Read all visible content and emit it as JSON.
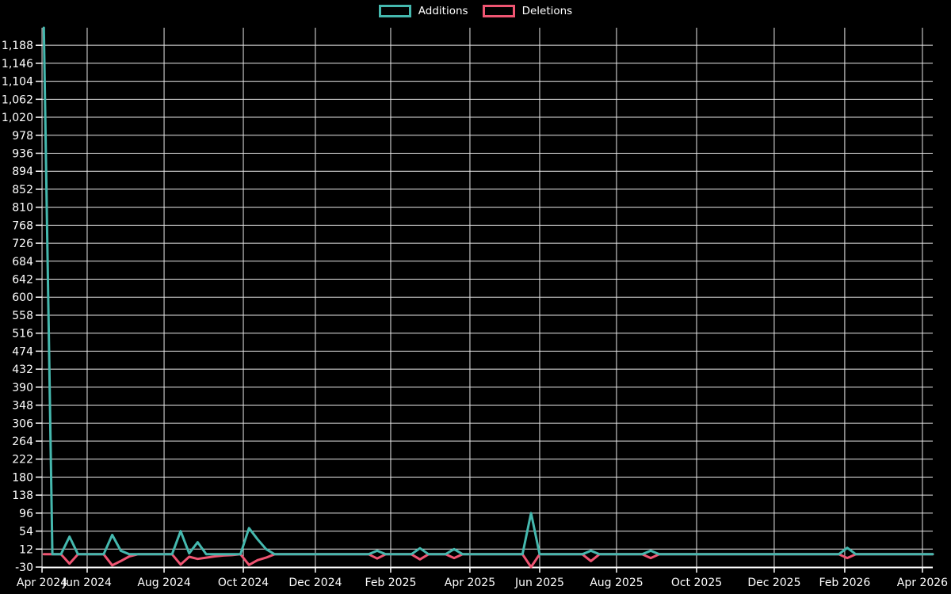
{
  "legend": {
    "items": [
      {
        "label": "Additions",
        "color": "#45b8ae"
      },
      {
        "label": "Deletions",
        "color": "#ef5572"
      }
    ]
  },
  "chart_data": {
    "type": "line",
    "title": "",
    "xlabel": "",
    "ylabel": "",
    "legend_position": "top",
    "grid": true,
    "background_color": "#000000",
    "grid_color": "#e8e8e8",
    "text_color": "#ffffff",
    "x_axis": {
      "unit": "week-index",
      "n_points": 105,
      "tick_labels": [
        "Apr 2024",
        "Jun 2024",
        "Aug 2024",
        "Oct 2024",
        "Dec 2024",
        "Feb 2025",
        "Apr 2025",
        "Jun 2025",
        "Aug 2025",
        "Oct 2025",
        "Dec 2025",
        "Feb 2026",
        "Apr 2026"
      ],
      "tick_weeks": [
        -0.21,
        5.07,
        14.07,
        23.34,
        31.77,
        40.58,
        49.85,
        58.01,
        67.0,
        76.37,
        85.45,
        93.7,
        102.79
      ]
    },
    "y_axis": {
      "min": -30,
      "max": 1229,
      "step": 42,
      "tick_labels": [
        "1,188",
        "1,146",
        "1,104",
        "1,062",
        "1,020",
        "978",
        "936",
        "894",
        "852",
        "810",
        "768",
        "726",
        "684",
        "642",
        "600",
        "558",
        "516",
        "474",
        "432",
        "390",
        "348",
        "306",
        "264",
        "222",
        "180",
        "138",
        "96",
        "54",
        "12",
        "-30"
      ]
    },
    "series": [
      {
        "name": "Additions",
        "color": "#45b8ae",
        "default": 0,
        "points": {
          "0": 1229,
          "3": 41,
          "8": 45,
          "9": 8,
          "16": 54,
          "17": 2,
          "18": 28,
          "24": 61,
          "25": 35,
          "26": 12,
          "39": 8,
          "44": 14,
          "48": 12,
          "57": 96,
          "64": 8,
          "71": 8,
          "94": 15
        }
      },
      {
        "name": "Deletions",
        "color": "#ef5572",
        "default": 0,
        "points": {
          "3": -22,
          "8": -26,
          "9": -16,
          "10": -5,
          "16": -24,
          "17": -6,
          "18": -11,
          "19": -8,
          "20": -5,
          "21": -3,
          "22": -2,
          "24": -25,
          "25": -14,
          "26": -8,
          "39": -10,
          "44": -12,
          "48": -9,
          "57": -30,
          "64": -16,
          "71": -9,
          "94": -9
        }
      }
    ]
  }
}
